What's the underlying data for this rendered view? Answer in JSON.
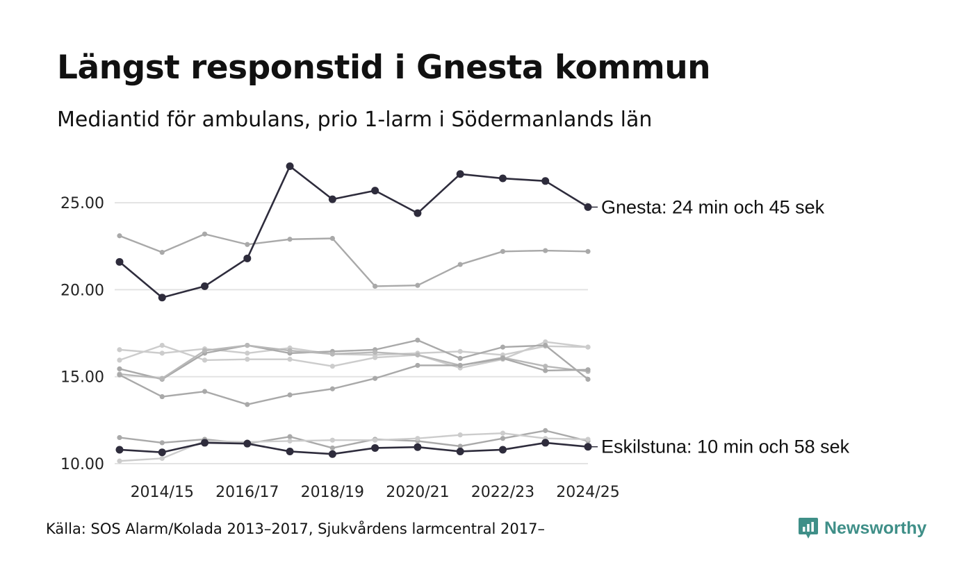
{
  "header": {
    "title": "Längst responstid i Gnesta kommun",
    "subtitle": "Mediantid för ambulans, prio 1-larm i Södermanlands län"
  },
  "footer": {
    "source": "Källa: SOS Alarm/Kolada 2013–2017, Sjukvårdens larmcentral 2017–",
    "brand": "Newsworthy"
  },
  "colors": {
    "highlight": "#2e2c3c",
    "grey_dark": "#a9a9a9",
    "grey_mid": "#b8b8b8",
    "grey_light": "#cccccc",
    "grid": "#e3e3e3",
    "brand": "#3f8f88"
  },
  "chart_data": {
    "type": "line",
    "title": "Längst responstid i Gnesta kommun",
    "subtitle": "Mediantid för ambulans, prio 1-larm i Södermanlands län",
    "xlabel": "",
    "ylabel": "",
    "x": [
      "2013/14",
      "2014/15",
      "2015/16",
      "2016/17",
      "2017/18",
      "2018/19",
      "2019/20",
      "2020/21",
      "2021/22",
      "2022/23",
      "2023/24",
      "2024/25"
    ],
    "x_tick_labels": [
      "2014/15",
      "2016/17",
      "2018/19",
      "2020/21",
      "2022/23",
      "2024/25"
    ],
    "x_tick_indices": [
      1,
      3,
      5,
      7,
      9,
      11
    ],
    "ylim": [
      10,
      27.2
    ],
    "y_ticks": [
      10,
      15,
      20,
      25
    ],
    "y_tick_labels": [
      "10.00",
      "15.00",
      "20.00",
      "25.00"
    ],
    "grid": true,
    "legend": "none",
    "series": [
      {
        "name": "grey-a",
        "tone": "grey_dark",
        "highlight": false,
        "values": [
          23.1,
          22.15,
          23.2,
          22.6,
          22.9,
          22.95,
          20.2,
          20.25,
          21.45,
          22.2,
          22.25,
          22.2
        ]
      },
      {
        "name": "grey-b",
        "tone": "grey_light",
        "highlight": false,
        "values": [
          16.55,
          16.35,
          16.6,
          16.35,
          16.65,
          16.3,
          16.25,
          16.35,
          16.45,
          16.25,
          16.75,
          16.7
        ]
      },
      {
        "name": "grey-c",
        "tone": "grey_light",
        "highlight": false,
        "values": [
          15.95,
          16.8,
          15.95,
          16.0,
          16.0,
          15.6,
          16.1,
          16.25,
          15.5,
          16.0,
          17.0,
          16.7
        ]
      },
      {
        "name": "grey-d",
        "tone": "grey_dark",
        "highlight": false,
        "values": [
          15.45,
          14.85,
          16.35,
          16.8,
          16.35,
          16.45,
          16.55,
          17.1,
          16.05,
          16.7,
          16.8,
          14.85
        ]
      },
      {
        "name": "grey-e",
        "tone": "grey_mid",
        "highlight": false,
        "values": [
          15.15,
          14.9,
          16.5,
          16.8,
          16.5,
          16.3,
          16.4,
          16.25,
          15.65,
          16.1,
          15.6,
          15.3
        ]
      },
      {
        "name": "grey-f",
        "tone": "grey_dark",
        "highlight": false,
        "values": [
          15.1,
          13.85,
          14.15,
          13.4,
          13.95,
          14.3,
          14.9,
          15.65,
          15.65,
          16.05,
          15.35,
          15.4
        ]
      },
      {
        "name": "grey-g",
        "tone": "grey_dark",
        "highlight": false,
        "values": [
          11.5,
          11.2,
          11.4,
          11.15,
          11.55,
          10.9,
          11.4,
          11.3,
          11.0,
          11.45,
          11.9,
          11.3
        ]
      },
      {
        "name": "grey-h",
        "tone": "grey_light",
        "highlight": false,
        "values": [
          10.15,
          10.3,
          11.3,
          11.25,
          11.3,
          11.35,
          11.35,
          11.45,
          11.65,
          11.75,
          11.45,
          11.4
        ]
      },
      {
        "name": "Eskilstuna",
        "tone": "highlight",
        "highlight": true,
        "values": [
          10.8,
          10.65,
          11.2,
          11.15,
          10.7,
          10.55,
          10.9,
          10.95,
          10.7,
          10.8,
          11.2,
          10.97
        ],
        "end_label": "Eskilstuna: 10 min och 58 sek"
      },
      {
        "name": "Gnesta",
        "tone": "highlight",
        "highlight": true,
        "values": [
          21.6,
          19.55,
          20.2,
          21.8,
          27.1,
          25.2,
          25.7,
          24.4,
          26.65,
          26.4,
          26.25,
          24.75
        ],
        "end_label": "Gnesta: 24 min och 45 sek"
      }
    ]
  }
}
